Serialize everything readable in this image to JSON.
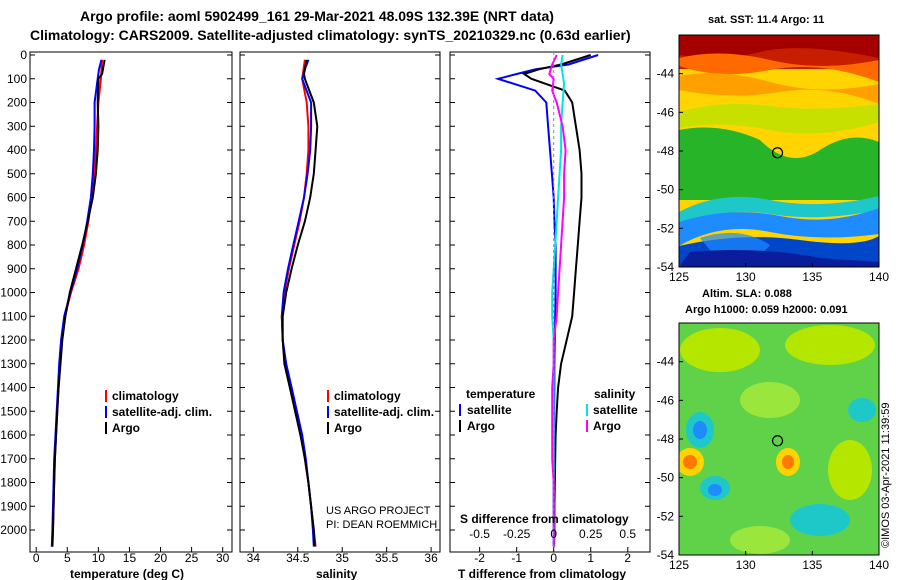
{
  "header": {
    "line1": "Argo profile: aoml 5902499_161 29-Mar-2021 48.09S 132.39E (NRT data)",
    "line2": "Climatology: CARS2009. Satellite-adjusted climatology: synTS_20210329.nc (0.63d earlier)"
  },
  "depth_ticks": [
    "0",
    "100",
    "200",
    "300",
    "400",
    "500",
    "600",
    "700",
    "800",
    "900",
    "1000",
    "1100",
    "1200",
    "1300",
    "1400",
    "1500",
    "1600",
    "1700",
    "1800",
    "1900",
    "2000"
  ],
  "colors": {
    "climatology": "#ff0000",
    "satellite": "#0000ff",
    "argo": "#000000",
    "sat_salinity": "#00e5e5",
    "argo_salinity": "#ff00ff"
  },
  "chart_data": [
    {
      "type": "line",
      "id": "temperature",
      "xlabel": "temperature (deg C)",
      "xlim": [
        -1,
        31.5
      ],
      "ylim": [
        2080,
        0
      ],
      "xticks": [
        "0",
        "5",
        "10",
        "15",
        "20",
        "25",
        "30"
      ],
      "legend": [
        "climatology",
        "satellite-adj. clim.",
        "Argo"
      ],
      "series": [
        {
          "name": "climatology",
          "color": "#ff0000",
          "depth": [
            20,
            100,
            200,
            300,
            400,
            500,
            600,
            700,
            800,
            900,
            1000,
            1100,
            1200,
            1300,
            1400,
            1500,
            1600,
            1700,
            1800,
            1900,
            2000,
            2070
          ],
          "values": [
            10.6,
            10.4,
            10.0,
            9.8,
            9.6,
            9.3,
            8.9,
            8.4,
            7.7,
            6.8,
            5.6,
            4.6,
            4.1,
            3.8,
            3.6,
            3.4,
            3.2,
            3.0,
            2.9,
            2.8,
            2.7,
            2.6
          ]
        },
        {
          "name": "satellite-adj. clim.",
          "color": "#0000ff",
          "depth": [
            20,
            60,
            100,
            200,
            300,
            400,
            500,
            600,
            700,
            800,
            900,
            1000,
            1100,
            1200,
            1300,
            1400,
            1500,
            1600,
            1700,
            1800,
            1900,
            2000,
            2070
          ],
          "values": [
            10.5,
            10.1,
            9.9,
            9.4,
            9.4,
            9.3,
            9.1,
            8.8,
            8.2,
            7.5,
            6.6,
            5.5,
            4.5,
            4.0,
            3.7,
            3.5,
            3.3,
            3.1,
            2.9,
            2.8,
            2.7,
            2.6,
            2.5
          ]
        },
        {
          "name": "Argo",
          "color": "#000000",
          "depth": [
            20,
            80,
            100,
            200,
            300,
            400,
            500,
            600,
            700,
            800,
            900,
            1000,
            1100,
            1200,
            1300,
            1400,
            1500,
            1600,
            1700,
            1800,
            1900,
            2000,
            2070
          ],
          "values": [
            11.0,
            10.6,
            10.0,
            9.9,
            10.0,
            9.9,
            9.6,
            9.1,
            8.3,
            7.4,
            6.4,
            5.4,
            4.7,
            4.2,
            3.9,
            3.6,
            3.4,
            3.2,
            3.0,
            2.9,
            2.8,
            2.7,
            2.6
          ]
        }
      ]
    },
    {
      "type": "line",
      "id": "salinity",
      "xlabel": "salinity",
      "xlim": [
        33.85,
        36.1
      ],
      "ylim": [
        2080,
        0
      ],
      "xticks": [
        "34",
        "34.5",
        "35",
        "35.5",
        "36"
      ],
      "legend": [
        "climatology",
        "satellite-adj. clim.",
        "Argo"
      ],
      "credits": [
        "US ARGO PROJECT",
        "PI: DEAN ROEMMICH"
      ],
      "series": [
        {
          "name": "climatology",
          "color": "#ff0000",
          "depth": [
            20,
            100,
            200,
            300,
            400,
            500,
            600,
            700,
            800,
            900,
            1000,
            1100,
            1200,
            1300,
            1400,
            1500,
            1600,
            1700,
            1800,
            1900,
            2000,
            2070
          ],
          "values": [
            34.58,
            34.55,
            34.6,
            34.62,
            34.62,
            34.6,
            34.57,
            34.52,
            34.46,
            34.4,
            34.35,
            34.32,
            34.33,
            34.36,
            34.42,
            34.48,
            34.54,
            34.58,
            34.62,
            34.65,
            34.68,
            34.7
          ]
        },
        {
          "name": "satellite-adj. clim.",
          "color": "#0000ff",
          "depth": [
            20,
            60,
            100,
            200,
            300,
            400,
            500,
            600,
            700,
            800,
            900,
            1000,
            1100,
            1200,
            1300,
            1400,
            1500,
            1600,
            1700,
            1800,
            1900,
            2000,
            2070
          ],
          "values": [
            34.62,
            34.58,
            34.55,
            34.65,
            34.65,
            34.64,
            34.61,
            34.57,
            34.51,
            34.45,
            34.39,
            34.34,
            34.32,
            34.33,
            34.37,
            34.43,
            34.49,
            34.55,
            34.59,
            34.62,
            34.65,
            34.67,
            34.68
          ]
        },
        {
          "name": "Argo",
          "color": "#000000",
          "depth": [
            20,
            80,
            100,
            200,
            300,
            400,
            500,
            600,
            700,
            800,
            900,
            1000,
            1100,
            1200,
            1300,
            1400,
            1500,
            1600,
            1700,
            1800,
            1900,
            2000,
            2070
          ],
          "values": [
            34.6,
            34.57,
            34.58,
            34.68,
            34.72,
            34.7,
            34.68,
            34.64,
            34.58,
            34.5,
            34.43,
            34.37,
            34.33,
            34.33,
            34.35,
            34.41,
            34.47,
            34.53,
            34.58,
            34.62,
            34.65,
            34.68,
            34.69
          ]
        }
      ]
    },
    {
      "type": "line",
      "id": "difference",
      "xlabel": "T difference from climatology",
      "xlabel_top": "S difference from climatology",
      "xlim": [
        -2.8,
        2.6
      ],
      "ylim": [
        2080,
        0
      ],
      "xticks": [
        "-2",
        "-1",
        "0",
        "1",
        "2"
      ],
      "xticks_top": [
        "-0.5",
        "-0.25",
        "0",
        "0.25",
        "0.5"
      ],
      "legend_left_title": "temperature",
      "legend_right_title": "salinity",
      "legend_left": [
        "satellite",
        "Argo"
      ],
      "legend_right": [
        "satellite",
        "Argo"
      ],
      "series": [
        {
          "name": "T satellite",
          "color": "#0000ff",
          "depth": [
            0,
            40,
            60,
            80,
            100,
            150,
            200,
            300,
            400,
            500,
            600,
            700,
            800,
            900,
            1000,
            1100,
            1200,
            1300,
            1400,
            1500,
            1600,
            1700,
            1800,
            1900,
            2000,
            2070
          ],
          "values": [
            1.2,
            0.4,
            -0.5,
            -1.0,
            -1.5,
            -0.5,
            -0.2,
            -0.15,
            -0.1,
            -0.05,
            0.0,
            0.02,
            0.05,
            0.05,
            0.05,
            0.04,
            0.03,
            0.02,
            0.02,
            0.01,
            0.0,
            0.0,
            0.0,
            0.0,
            0.0,
            0.0
          ]
        },
        {
          "name": "T Argo",
          "color": "#000000",
          "depth": [
            0,
            40,
            60,
            80,
            100,
            150,
            200,
            300,
            400,
            500,
            600,
            700,
            800,
            900,
            1000,
            1100,
            1200,
            1300,
            1400,
            1500,
            1600,
            1700,
            1800,
            1900,
            2000,
            2070
          ],
          "values": [
            1.0,
            0.2,
            -0.4,
            -0.8,
            -0.6,
            0.3,
            0.5,
            0.6,
            0.7,
            0.75,
            0.75,
            0.7,
            0.65,
            0.6,
            0.55,
            0.5,
            0.35,
            0.2,
            0.12,
            0.08,
            0.05,
            0.04,
            0.03,
            0.02,
            0.02,
            0.01
          ]
        },
        {
          "name": "S satellite",
          "color": "#00e5e5",
          "depth": [
            0,
            40,
            80,
            120,
            200,
            300,
            400,
            500,
            600,
            700,
            800,
            900,
            1000,
            1100,
            1200,
            1300,
            1400,
            1500,
            1600,
            1700,
            1800,
            1900,
            2000,
            2070
          ],
          "values": [
            0.06,
            0.05,
            0.06,
            0.07,
            0.06,
            0.05,
            0.05,
            0.04,
            0.03,
            0.02,
            0.01,
            0.0,
            -0.01,
            -0.01,
            0.0,
            0.0,
            0.0,
            0.0,
            0.0,
            0.0,
            0.0,
            0.0,
            0.0,
            0.0
          ]
        },
        {
          "name": "S Argo",
          "color": "#ff00ff",
          "depth": [
            0,
            40,
            80,
            100,
            150,
            200,
            300,
            400,
            500,
            600,
            700,
            800,
            900,
            1000,
            1100,
            1200,
            1300,
            1400,
            1500,
            1600,
            1700,
            1800,
            1900,
            2000,
            2070
          ],
          "values": [
            0.02,
            -0.01,
            -0.03,
            0.0,
            -0.01,
            0.02,
            0.06,
            0.08,
            0.07,
            0.07,
            0.06,
            0.05,
            0.04,
            0.03,
            0.02,
            0.0,
            0.0,
            -0.01,
            -0.01,
            -0.01,
            -0.01,
            0.0,
            0.0,
            0.0,
            0.0
          ]
        }
      ]
    },
    {
      "type": "heatmap",
      "id": "sst-map",
      "title": "sat. SST: 11.4 Argo: 11",
      "xlim": [
        125,
        140
      ],
      "ylim": [
        -54,
        -42
      ],
      "xticks": [
        "125",
        "130",
        "135",
        "140"
      ],
      "yticks": [
        "-44",
        "-46",
        "-48",
        "-50",
        "-52",
        "-54"
      ],
      "marker": {
        "lon": 132.39,
        "lat": -48.09
      }
    },
    {
      "type": "heatmap",
      "id": "sla-map",
      "title": "Altim. SLA: 0.088",
      "subtitle": "Argo h1000: 0.059 h2000: 0.091",
      "xlim": [
        125,
        140
      ],
      "ylim": [
        -54,
        -42
      ],
      "xticks": [
        "125",
        "130",
        "135",
        "140"
      ],
      "yticks": [
        "-44",
        "-46",
        "-48",
        "-50",
        "-52",
        "-54"
      ],
      "marker": {
        "lon": 132.39,
        "lat": -48.09
      },
      "side_label": "©IMOS 03-Apr-2021 11:39:59"
    }
  ]
}
